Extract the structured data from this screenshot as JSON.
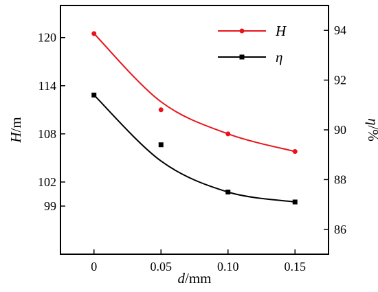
{
  "chart_data": {
    "type": "line",
    "x": [
      0,
      0.05,
      0.1,
      0.15
    ],
    "x_tick_labels": [
      "0",
      "0.05",
      "0.10",
      "0.15"
    ],
    "xlim": [
      -0.025,
      0.175
    ],
    "xlabel": {
      "var": "d",
      "unit": "/mm"
    },
    "left_axis": {
      "label": {
        "var": "H",
        "unit": "/m"
      },
      "ylim": [
        93,
        124
      ],
      "ticks": [
        99,
        102,
        108,
        114,
        120
      ],
      "tick_labels": [
        "99",
        "102",
        "108",
        "114",
        "120"
      ]
    },
    "right_axis": {
      "label": {
        "var": "η",
        "unit": "/%"
      },
      "ylim": [
        85,
        95
      ],
      "ticks": [
        86,
        88,
        90,
        92,
        94
      ],
      "tick_labels": [
        "86",
        "88",
        "90",
        "92",
        "94"
      ]
    },
    "series": [
      {
        "name": "H",
        "axis": "left",
        "color": "#e8141b",
        "marker": "circle",
        "values": [
          120.5,
          111.0,
          108.0,
          105.8
        ],
        "fit": "smooth"
      },
      {
        "name": "η",
        "axis": "right",
        "color": "#000000",
        "marker": "square",
        "values": [
          91.4,
          89.4,
          87.5,
          87.1
        ],
        "fit": "smooth"
      }
    ],
    "legend": {
      "placement": "top-right"
    },
    "grid": false
  }
}
